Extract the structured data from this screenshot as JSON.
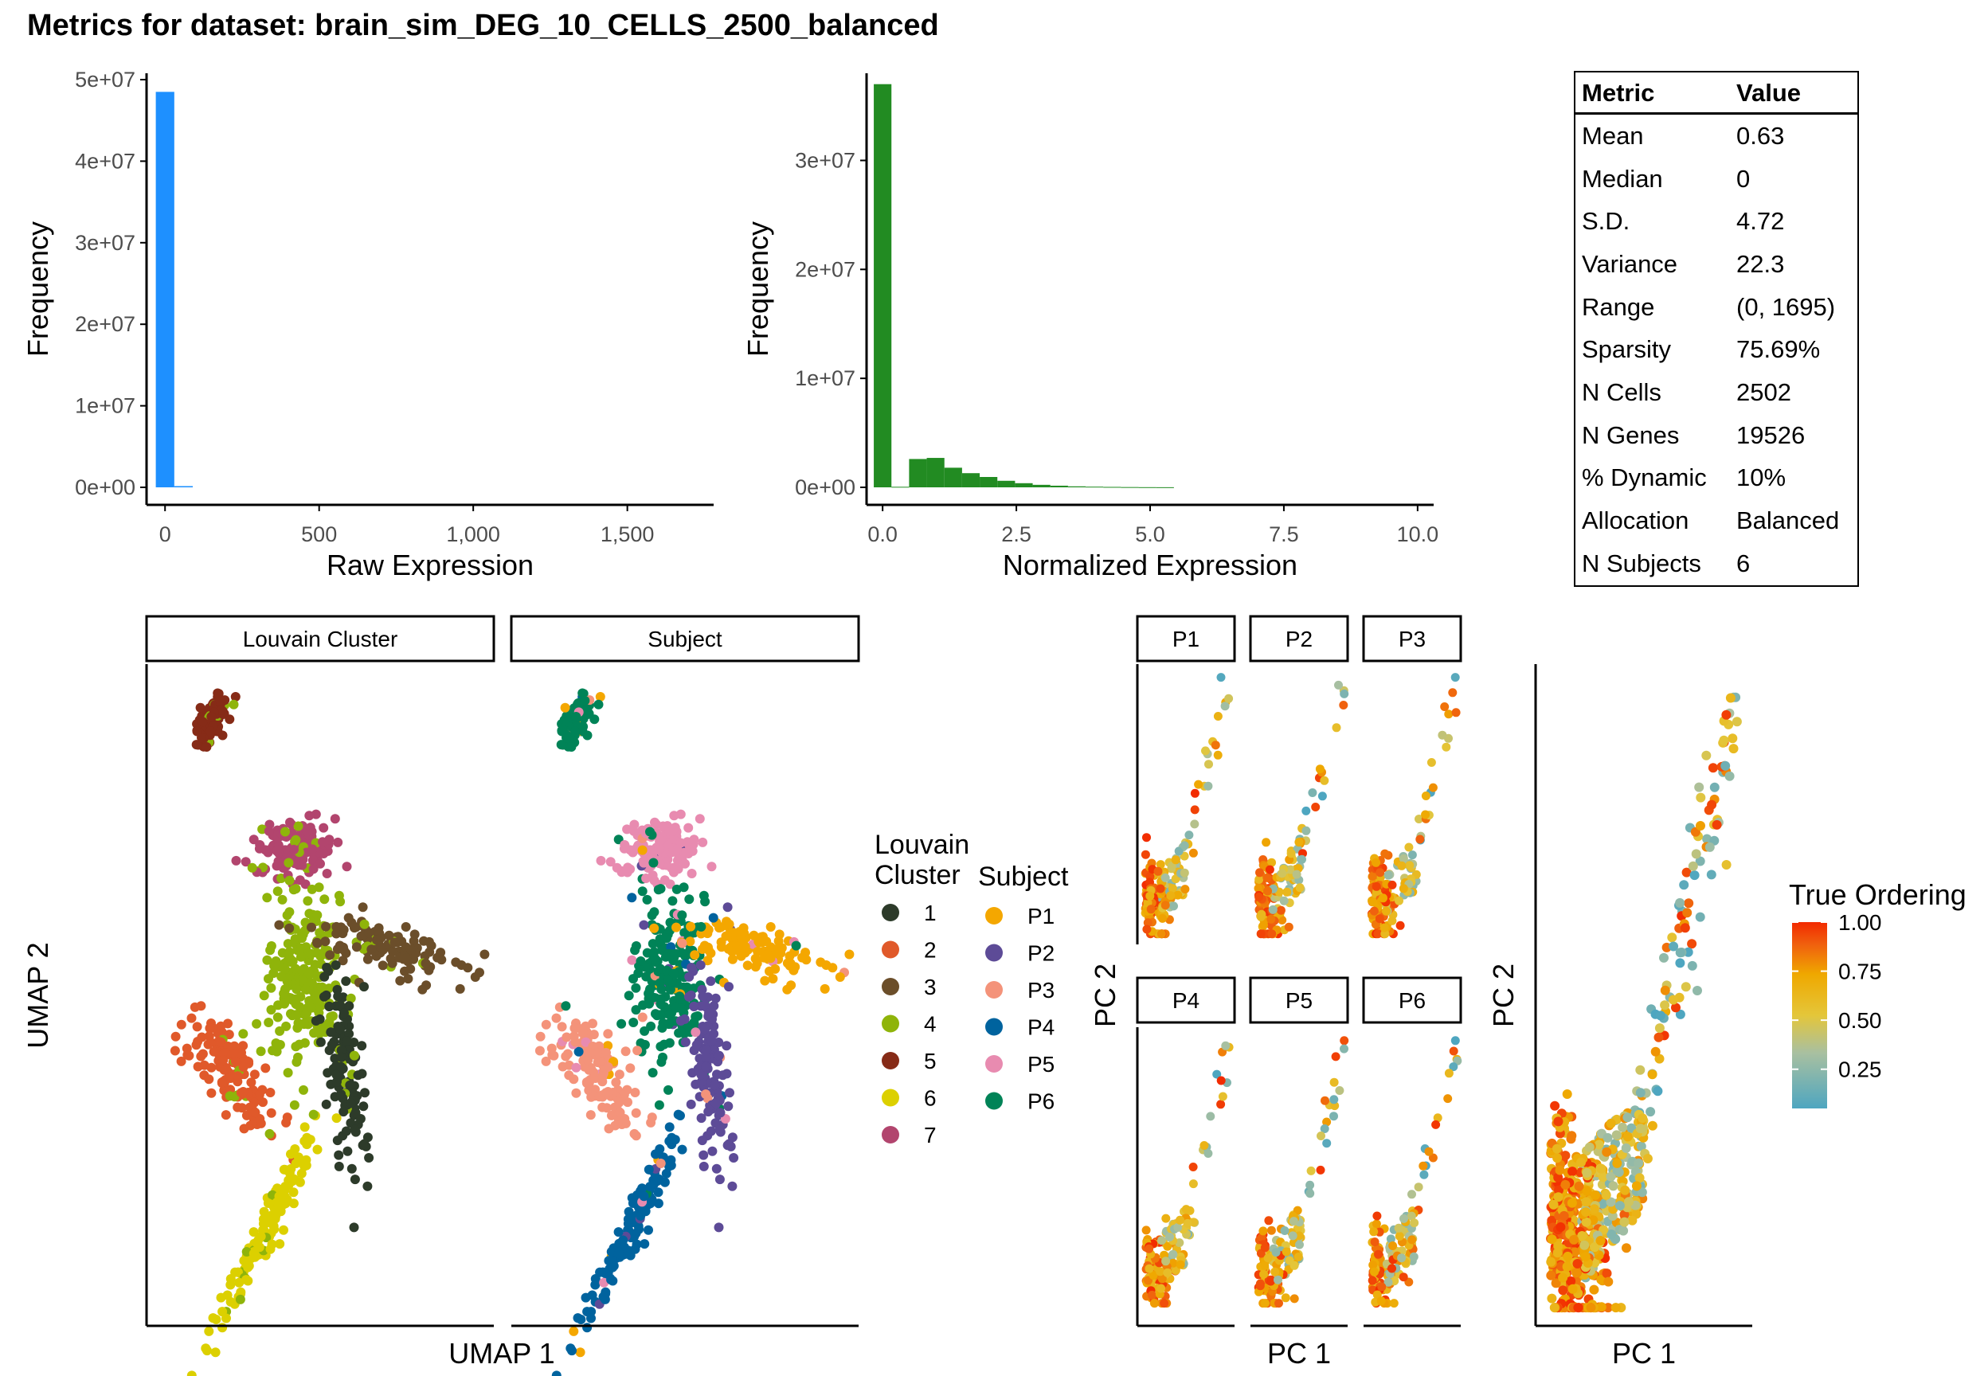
{
  "title": "Metrics for dataset: brain_sim_DEG_10_CELLS_2500_balanced",
  "colors": {
    "raw_bar": "#1E90FF",
    "norm_bar": "#228B22",
    "louvain": [
      "#2D3B2A",
      "#E0592A",
      "#6B4E2A",
      "#8FB40A",
      "#862B17",
      "#DCD000",
      "#B2456E"
    ],
    "subject": [
      "#F4A700",
      "#5D4B97",
      "#F4937A",
      "#00639E",
      "#E88BB0",
      "#008357"
    ],
    "ordering_gradient": [
      "#4EA6C0",
      "#D7C74A",
      "#EFB400",
      "#F05A10",
      "#F22A00"
    ]
  },
  "table": {
    "headers": [
      "Metric",
      "Value"
    ],
    "rows": [
      [
        "Mean",
        "0.63"
      ],
      [
        "Median",
        "0"
      ],
      [
        "S.D.",
        "4.72"
      ],
      [
        "Variance",
        "22.3"
      ],
      [
        "Range",
        "(0, 1695)"
      ],
      [
        "Sparsity",
        "75.69%"
      ],
      [
        "N Cells",
        "2502"
      ],
      [
        "N Genes",
        "19526"
      ],
      [
        "% Dynamic",
        "10%"
      ],
      [
        "Allocation",
        "Balanced"
      ],
      [
        "N Subjects",
        "6"
      ]
    ]
  },
  "chart_data": [
    {
      "type": "bar",
      "name": "raw-histogram",
      "xlabel": "Raw Expression",
      "ylabel": "Frequency",
      "x_ticks": [
        "0",
        "500",
        "1,000",
        "1,500"
      ],
      "y_ticks": [
        "0e+00",
        "1e+07",
        "2e+07",
        "3e+07",
        "4e+07",
        "5e+07"
      ],
      "xlim": [
        -60,
        1780
      ],
      "ylim": [
        0,
        50000000
      ],
      "bins": [
        {
          "x0": -30,
          "x1": 30,
          "value": 48500000
        },
        {
          "x0": 30,
          "x1": 90,
          "value": 150000
        }
      ]
    },
    {
      "type": "bar",
      "name": "normalized-histogram",
      "xlabel": "Normalized Expression",
      "ylabel": "Frequency",
      "x_ticks": [
        "0.0",
        "2.5",
        "5.0",
        "7.5",
        "10.0"
      ],
      "y_ticks": [
        "0e+00",
        "1e+07",
        "2e+07",
        "3e+07"
      ],
      "xlim": [
        -0.3,
        10.3
      ],
      "ylim": [
        0,
        38000000
      ],
      "bin_width": 0.33,
      "bin_start": -0.165,
      "values": [
        37000000,
        50000,
        2600000,
        2700000,
        1800000,
        1300000,
        950000,
        600000,
        380000,
        230000,
        150000,
        90000,
        60000,
        40000,
        25000,
        15000,
        10000
      ]
    },
    {
      "type": "scatter",
      "name": "umap-louvain-subject",
      "facets": [
        "Louvain Cluster",
        "Subject"
      ],
      "xlabel": "UMAP 1",
      "ylabel": "UMAP 2",
      "legend_louvain_title": "Louvain Cluster",
      "legend_louvain_title_line1": "Louvain",
      "legend_louvain_title_line2": "Cluster",
      "legend_louvain": [
        "1",
        "2",
        "3",
        "4",
        "5",
        "6",
        "7"
      ],
      "legend_subject_title": "Subject",
      "legend_subject": [
        "P1",
        "P2",
        "P3",
        "P4",
        "P5",
        "P6"
      ],
      "xlim": [
        -10,
        10
      ],
      "ylim": [
        -10,
        10
      ],
      "clusters": [
        {
          "name": "top-arm",
          "louvain": 5,
          "subject": "P6",
          "center": [
            -6.5,
            8.6
          ],
          "spread": [
            0.6,
            0.3
          ],
          "angle": 35,
          "n": 110
        },
        {
          "name": "upper-loop",
          "louvain": 7,
          "subject": "P5",
          "center": [
            -1.5,
            4.6
          ],
          "spread": [
            1.4,
            0.45
          ],
          "angle": 0,
          "n": 130
        },
        {
          "name": "center",
          "louvain": 4,
          "subject": "P6",
          "center": [
            -1.0,
            0.6
          ],
          "spread": [
            1.1,
            1.3
          ],
          "angle": 0,
          "n": 220
        },
        {
          "name": "right-arm",
          "louvain": 3,
          "subject": "P1",
          "center": [
            3.5,
            1.6
          ],
          "spread": [
            2.0,
            0.35
          ],
          "angle": -8,
          "n": 120
        },
        {
          "name": "left-arm",
          "louvain": 2,
          "subject": "P3",
          "center": [
            -5.3,
            -2.3
          ],
          "spread": [
            1.5,
            0.6
          ],
          "angle": -30,
          "n": 140
        },
        {
          "name": "lower-right-arm",
          "louvain": 1,
          "subject": "P2",
          "center": [
            1.4,
            -2.3
          ],
          "spread": [
            0.55,
            1.6
          ],
          "angle": 12,
          "n": 130
        },
        {
          "name": "bottom-arm",
          "louvain": 6,
          "subject": "P4",
          "center": [
            -3.2,
            -7.3
          ],
          "spread": [
            2.3,
            0.35
          ],
          "angle": 48,
          "n": 130
        }
      ]
    },
    {
      "type": "scatter",
      "name": "pca-true-ordering",
      "facets": [
        "P1",
        "P2",
        "P3",
        "P4",
        "P5",
        "P6"
      ],
      "xlabel": "PC 1",
      "ylabel": "PC 2",
      "color_title": "True Ordering",
      "color_ticks": [
        "1.00",
        "0.75",
        "0.50",
        "0.25"
      ],
      "color_tick_values": [
        1.0,
        0.75,
        0.5,
        0.25
      ],
      "color_range": [
        0.05,
        1.0
      ]
    }
  ]
}
